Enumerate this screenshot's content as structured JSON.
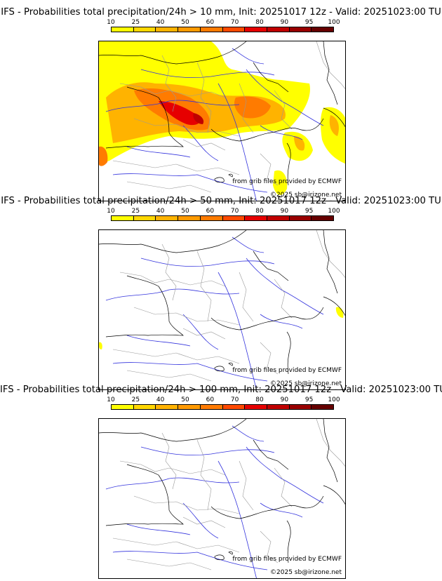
{
  "legend": {
    "ticks": [
      "10",
      "25",
      "40",
      "50",
      "60",
      "70",
      "80",
      "90",
      "95",
      "100"
    ],
    "colors": [
      "#ffff00",
      "#ffd700",
      "#ffb300",
      "#ff9a00",
      "#ff7b00",
      "#ff4a00",
      "#e60000",
      "#c00000",
      "#990000",
      "#660000"
    ]
  },
  "panels": [
    {
      "title": "IFS - Probabilities total precipitation/24h > 10 mm, Init: 20251017 12z - Valid: 20251023:00 TU",
      "source_credit": "from grib files provided by ECMWF",
      "copyright": "©2025 sb@irizone.net"
    },
    {
      "title": "IFS - Probabilities total precipitation/24h > 50 mm, Init: 20251017 12z - Valid: 20251023:00 TU",
      "source_credit": "from grib files provided by ECMWF",
      "copyright": "©2025 sb@irizone.net"
    },
    {
      "title": "IFS - Probabilities total precipitation/24h > 100 mm, Init: 20251017 12z - Valid: 20251023:00 TU",
      "source_credit": "from grib files provided by ECMWF",
      "copyright": "©2025 sb@irizone.net"
    }
  ],
  "colors": {
    "rivers": "#3333dd",
    "borders": "#999999",
    "coast": "#000000"
  }
}
